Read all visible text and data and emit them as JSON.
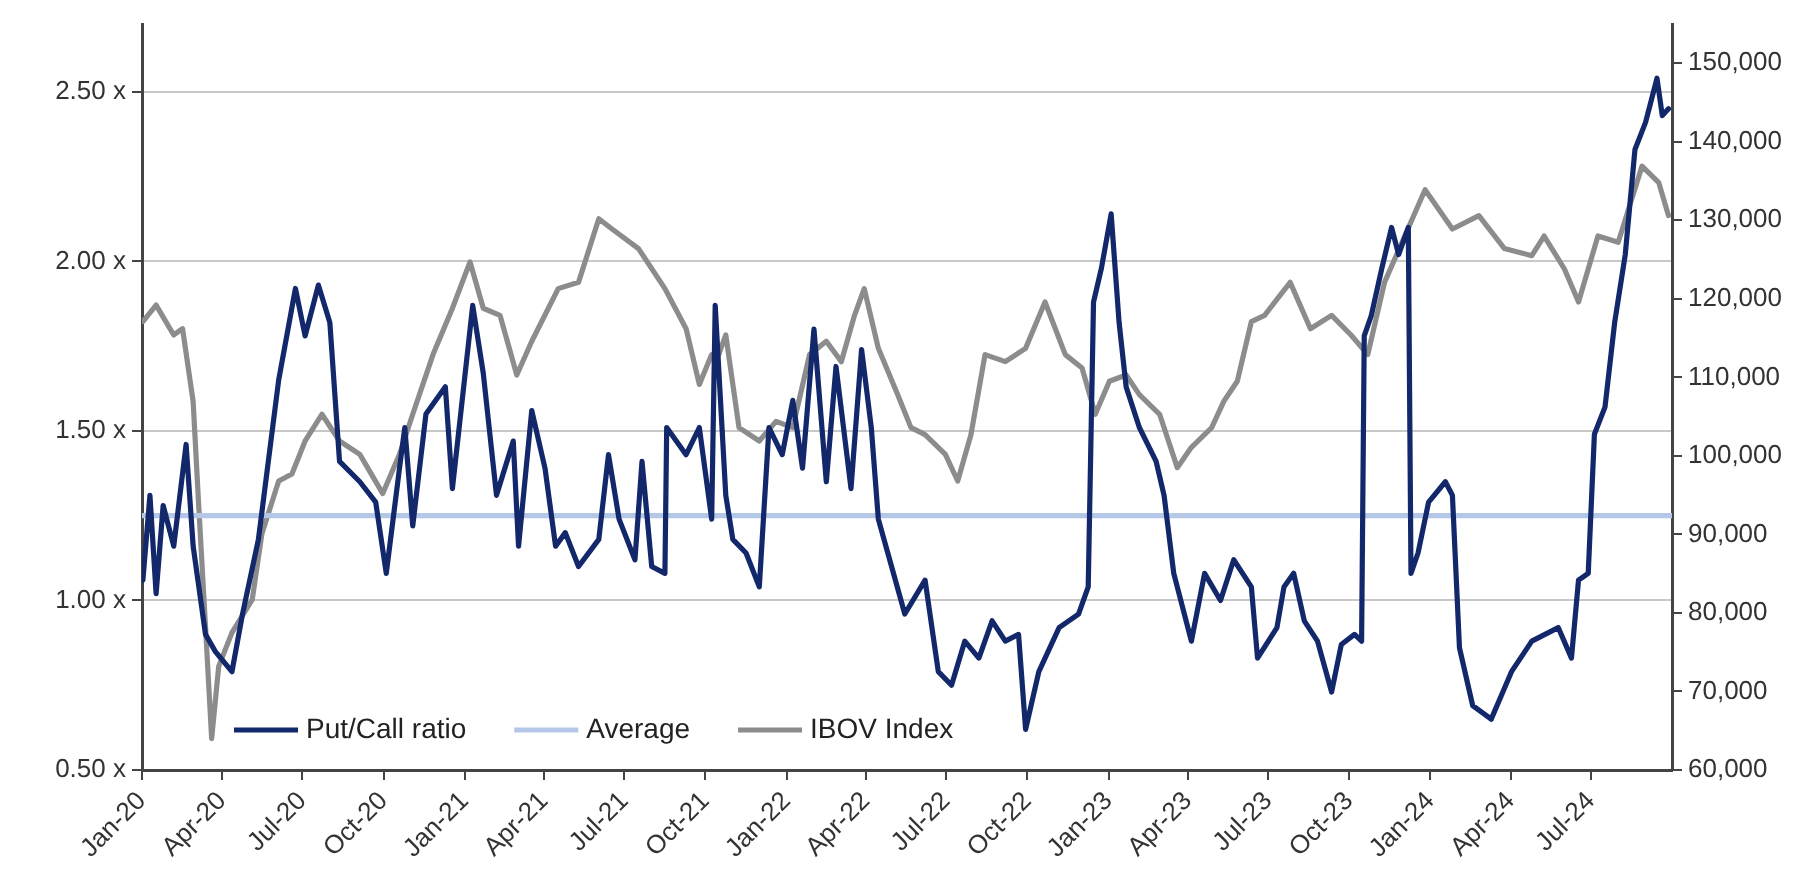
{
  "chart_data": {
    "type": "line",
    "legend": "bottom left",
    "grid": "y",
    "xlim": [
      "2020-01-01",
      "2024-10-01"
    ],
    "xticks": [
      {
        "value": "2020-01-01",
        "label": "Jan-20"
      },
      {
        "value": "2020-04-01",
        "label": "Apr-20"
      },
      {
        "value": "2020-07-01",
        "label": "Jul-20"
      },
      {
        "value": "2020-10-01",
        "label": "Oct-20"
      },
      {
        "value": "2021-01-01",
        "label": "Jan-21"
      },
      {
        "value": "2021-04-01",
        "label": "Apr-21"
      },
      {
        "value": "2021-07-01",
        "label": "Jul-21"
      },
      {
        "value": "2021-10-01",
        "label": "Oct-21"
      },
      {
        "value": "2022-01-01",
        "label": "Jan-22"
      },
      {
        "value": "2022-04-01",
        "label": "Apr-22"
      },
      {
        "value": "2022-07-01",
        "label": "Jul-22"
      },
      {
        "value": "2022-10-01",
        "label": "Oct-22"
      },
      {
        "value": "2023-01-01",
        "label": "Jan-23"
      },
      {
        "value": "2023-04-01",
        "label": "Apr-23"
      },
      {
        "value": "2023-07-01",
        "label": "Jul-23"
      },
      {
        "value": "2023-10-01",
        "label": "Oct-23"
      },
      {
        "value": "2024-01-01",
        "label": "Jan-24"
      },
      {
        "value": "2024-04-01",
        "label": "Apr-24"
      },
      {
        "value": "2024-07-01",
        "label": "Jul-24"
      }
    ],
    "ylim": [
      0.5,
      2.7
    ],
    "yticks": [
      {
        "value": 0.5,
        "label": "0.50 x"
      },
      {
        "value": 1,
        "label": "1.00 x"
      },
      {
        "value": 1.5,
        "label": "1.50 x"
      },
      {
        "value": 2,
        "label": "2.00 x"
      },
      {
        "value": 2.5,
        "label": "2.50 x"
      }
    ],
    "y2lim": [
      60000,
      155000
    ],
    "y2ticks": [
      {
        "value": 60000,
        "label": "60,000"
      },
      {
        "value": 70000,
        "label": "70,000"
      },
      {
        "value": 80000,
        "label": "80,000"
      },
      {
        "value": 90000,
        "label": "90,000"
      },
      {
        "value": 100000,
        "label": "100,000"
      },
      {
        "value": 110000,
        "label": "110,000"
      },
      {
        "value": 120000,
        "label": "120,000"
      },
      {
        "value": 130000,
        "label": "130,000"
      },
      {
        "value": 140000,
        "label": "140,000"
      },
      {
        "value": 150000,
        "label": "150,000"
      }
    ],
    "series": [
      {
        "name": "Put/Call ratio",
        "color": "#13276b",
        "x": [
          "2020-01-02",
          "2020-01-10",
          "2020-01-17",
          "2020-01-25",
          "2020-02-06",
          "2020-02-20",
          "2020-02-28",
          "2020-03-13",
          "2020-03-24",
          "2020-04-12",
          "2020-04-24",
          "2020-05-12",
          "2020-06-04",
          "2020-06-23",
          "2020-07-04",
          "2020-07-19",
          "2020-08-01",
          "2020-08-12",
          "2020-09-04",
          "2020-09-22",
          "2020-10-04",
          "2020-10-19",
          "2020-10-25",
          "2020-11-03",
          "2020-11-18",
          "2020-12-10",
          "2020-12-18",
          "2021-01-10",
          "2021-01-22",
          "2021-02-06",
          "2021-02-25",
          "2021-03-03",
          "2021-03-18",
          "2021-04-02",
          "2021-04-14",
          "2021-04-25",
          "2021-05-10",
          "2021-06-02",
          "2021-06-13",
          "2021-06-25",
          "2021-07-13",
          "2021-07-21",
          "2021-08-01",
          "2021-08-16",
          "2021-08-18",
          "2021-09-09",
          "2021-09-24",
          "2021-10-08",
          "2021-10-12",
          "2021-10-24",
          "2021-11-01",
          "2021-11-16",
          "2021-12-01",
          "2021-12-12",
          "2021-12-27",
          "2022-01-08",
          "2022-01-19",
          "2022-02-01",
          "2022-02-15",
          "2022-02-26",
          "2022-03-15",
          "2022-03-27",
          "2022-04-07",
          "2022-04-15",
          "2022-04-30",
          "2022-05-15",
          "2022-06-07",
          "2022-06-22",
          "2022-07-07",
          "2022-07-22",
          "2022-08-07",
          "2022-08-22",
          "2022-09-06",
          "2022-09-21",
          "2022-09-29",
          "2022-10-14",
          "2022-11-06",
          "2022-11-28",
          "2022-12-09",
          "2022-12-15",
          "2022-12-24",
          "2023-01-04",
          "2023-01-13",
          "2023-01-21",
          "2023-02-05",
          "2023-02-24",
          "2023-03-05",
          "2023-03-16",
          "2023-04-05",
          "2023-04-20",
          "2023-05-08",
          "2023-05-23",
          "2023-06-12",
          "2023-06-19",
          "2023-07-11",
          "2023-07-19",
          "2023-07-30",
          "2023-08-11",
          "2023-08-26",
          "2023-09-11",
          "2023-09-22",
          "2023-10-07",
          "2023-10-15",
          "2023-10-18",
          "2023-10-26",
          "2023-11-07",
          "2023-11-18",
          "2023-11-26",
          "2023-12-07",
          "2023-12-10",
          "2023-12-18",
          "2023-12-30",
          "2024-01-18",
          "2024-01-26",
          "2024-02-03",
          "2024-02-18",
          "2024-03-10",
          "2024-04-02",
          "2024-04-25",
          "2024-05-25",
          "2024-06-09",
          "2024-06-17",
          "2024-06-28",
          "2024-07-05",
          "2024-07-17",
          "2024-07-28",
          "2024-08-09",
          "2024-08-20",
          "2024-09-01",
          "2024-09-14",
          "2024-09-20",
          "2024-09-27"
        ],
        "values": [
          1.06,
          1.31,
          1.02,
          1.28,
          1.16,
          1.46,
          1.16,
          0.9,
          0.85,
          0.79,
          0.96,
          1.18,
          1.65,
          1.92,
          1.78,
          1.93,
          1.82,
          1.41,
          1.35,
          1.29,
          1.08,
          1.39,
          1.51,
          1.22,
          1.55,
          1.63,
          1.33,
          1.87,
          1.67,
          1.31,
          1.47,
          1.16,
          1.56,
          1.39,
          1.16,
          1.2,
          1.1,
          1.18,
          1.43,
          1.24,
          1.12,
          1.41,
          1.1,
          1.08,
          1.51,
          1.43,
          1.51,
          1.24,
          1.87,
          1.31,
          1.18,
          1.14,
          1.04,
          1.51,
          1.43,
          1.59,
          1.39,
          1.8,
          1.35,
          1.69,
          1.33,
          1.74,
          1.51,
          1.24,
          1.1,
          0.96,
          1.06,
          0.79,
          0.75,
          0.88,
          0.83,
          0.94,
          0.88,
          0.9,
          0.62,
          0.79,
          0.92,
          0.96,
          1.04,
          1.88,
          1.98,
          2.14,
          1.82,
          1.63,
          1.51,
          1.41,
          1.31,
          1.08,
          0.88,
          1.08,
          1.0,
          1.12,
          1.04,
          0.83,
          0.92,
          1.04,
          1.08,
          0.94,
          0.88,
          0.73,
          0.87,
          0.9,
          0.88,
          1.78,
          1.84,
          1.98,
          2.1,
          2.02,
          2.1,
          1.08,
          1.14,
          1.29,
          1.35,
          1.31,
          0.86,
          0.69,
          0.65,
          0.79,
          0.88,
          0.92,
          0.83,
          1.06,
          1.08,
          1.49,
          1.57,
          1.82,
          2.02,
          2.33,
          2.41,
          2.54,
          2.43,
          2.45
        ]
      },
      {
        "name": "Average",
        "color": "#b4c7e7",
        "x": [
          "2020-01-01",
          "2024-10-01"
        ],
        "values": [
          1.25,
          1.25
        ]
      },
      {
        "name": "IBOV Index",
        "color": "#8c8c8c",
        "axis": "y2",
        "x": [
          "2020-01-02",
          "2020-01-17",
          "2020-02-06",
          "2020-02-16",
          "2020-02-28",
          "2020-03-05",
          "2020-03-13",
          "2020-03-20",
          "2020-03-28",
          "2020-04-12",
          "2020-05-05",
          "2020-05-16",
          "2020-06-04",
          "2020-06-19",
          "2020-07-04",
          "2020-07-23",
          "2020-08-12",
          "2020-09-04",
          "2020-09-30",
          "2020-10-19",
          "2020-11-03",
          "2020-11-26",
          "2020-12-18",
          "2021-01-07",
          "2021-01-22",
          "2021-02-10",
          "2021-03-01",
          "2021-03-18",
          "2021-04-17",
          "2021-05-10",
          "2021-06-02",
          "2021-06-17",
          "2021-07-17",
          "2021-08-16",
          "2021-09-09",
          "2021-09-24",
          "2021-10-08",
          "2021-10-16",
          "2021-10-24",
          "2021-11-08",
          "2021-12-01",
          "2021-12-20",
          "2022-01-08",
          "2022-01-27",
          "2022-02-15",
          "2022-03-04",
          "2022-03-19",
          "2022-03-30",
          "2022-04-15",
          "2022-05-07",
          "2022-05-22",
          "2022-06-07",
          "2022-06-30",
          "2022-07-14",
          "2022-07-29",
          "2022-08-14",
          "2022-09-06",
          "2022-09-29",
          "2022-10-21",
          "2022-11-13",
          "2022-12-02",
          "2022-12-17",
          "2023-01-02",
          "2023-01-21",
          "2023-02-05",
          "2023-02-28",
          "2023-03-20",
          "2023-04-05",
          "2023-04-28",
          "2023-05-12",
          "2023-05-27",
          "2023-06-12",
          "2023-06-27",
          "2023-07-26",
          "2023-08-18",
          "2023-09-11",
          "2023-10-03",
          "2023-10-22",
          "2023-11-10",
          "2023-12-03",
          "2023-12-26",
          "2024-01-26",
          "2024-02-25",
          "2024-03-25",
          "2024-04-25",
          "2024-05-09",
          "2024-06-01",
          "2024-06-17",
          "2024-07-09",
          "2024-08-01",
          "2024-08-28",
          "2024-09-16",
          "2024-09-27"
        ],
        "values": [
          117100,
          119200,
          115400,
          116200,
          106900,
          94300,
          78300,
          64000,
          73200,
          77500,
          81700,
          90100,
          96800,
          97700,
          101900,
          105300,
          101900,
          100200,
          95200,
          100200,
          105300,
          112900,
          118800,
          124700,
          118800,
          117900,
          110300,
          114600,
          121300,
          122100,
          130200,
          128900,
          126400,
          121300,
          116200,
          109100,
          112900,
          112900,
          115400,
          103600,
          101900,
          104400,
          103600,
          112900,
          114600,
          112000,
          117900,
          121300,
          113700,
          107800,
          103600,
          102700,
          100200,
          96800,
          102700,
          112900,
          112000,
          113700,
          119600,
          112900,
          111200,
          105300,
          109500,
          110300,
          107800,
          105300,
          98500,
          101100,
          103600,
          107000,
          109500,
          117100,
          117900,
          122100,
          116200,
          117900,
          115400,
          112900,
          122100,
          128000,
          133900,
          128900,
          130600,
          126400,
          125500,
          128000,
          123800,
          119600,
          128000,
          127200,
          136900,
          134800,
          130600
        ]
      }
    ]
  }
}
